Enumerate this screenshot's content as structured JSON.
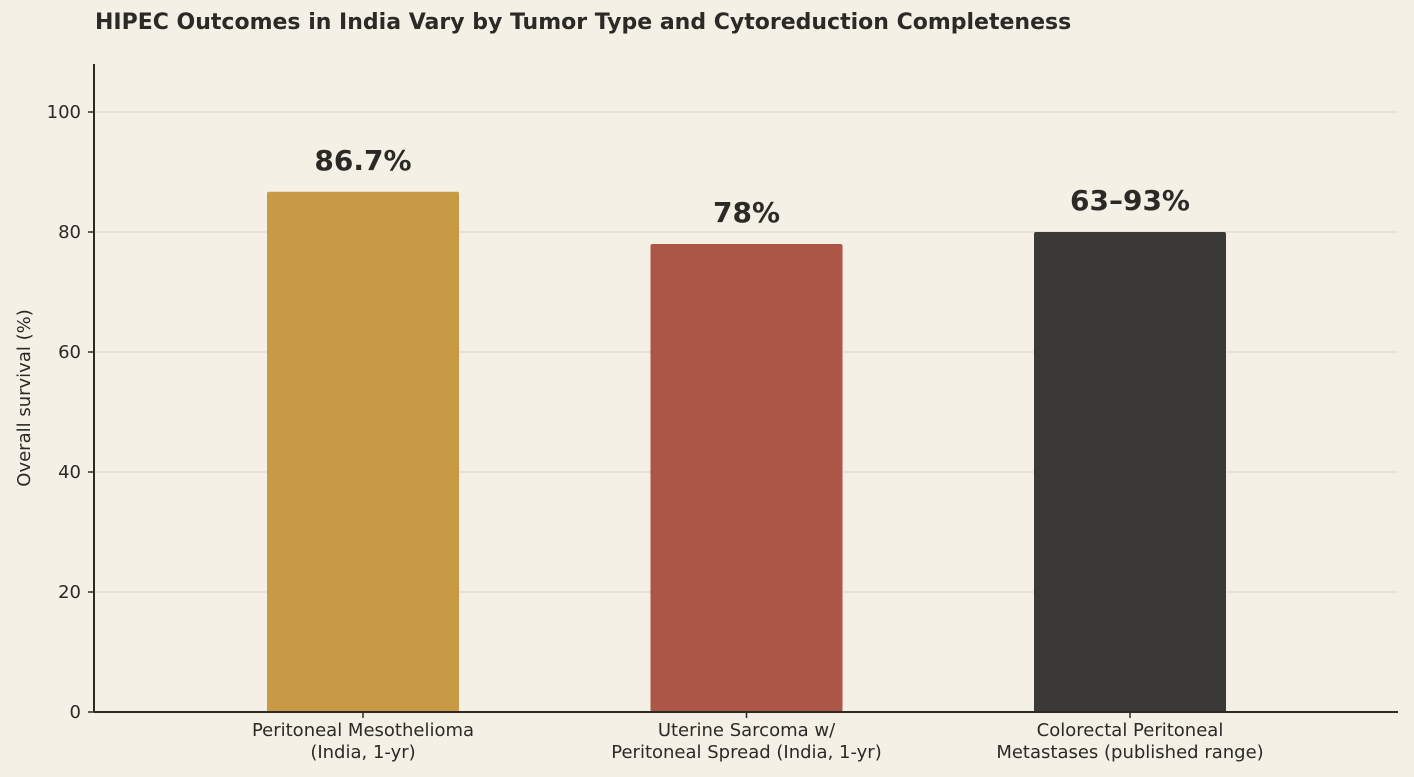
{
  "chart_data": {
    "type": "bar",
    "title": "HIPEC Outcomes in India Vary by Tumor Type and Cytoreduction Completeness",
    "xlabel": "",
    "ylabel": "Overall survival (%)",
    "ylim": [
      0,
      108
    ],
    "yticks": [
      0,
      20,
      40,
      60,
      80,
      100
    ],
    "grid": true,
    "categories": [
      [
        "Peritoneal Mesothelioma",
        "(India, 1-yr)"
      ],
      [
        "Uterine Sarcoma w/",
        "Peritoneal Spread (India, 1-yr)"
      ],
      [
        "Colorectal Peritoneal",
        "Metastases (published range)"
      ]
    ],
    "values": [
      86.7,
      78,
      80
    ],
    "data_labels": [
      "86.7%",
      "78%",
      "63–93%"
    ],
    "colors": [
      "#c99a45",
      "#ab5646",
      "#3b3935"
    ]
  },
  "colors": {
    "background": "#f4f0e6",
    "axis": "#2b2a26",
    "grid": "#e3ddd0"
  }
}
